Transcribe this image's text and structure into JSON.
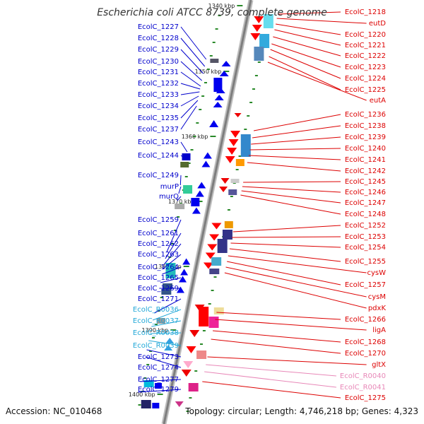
{
  "title": "Escherichia coli ATCC 8739, complete genome",
  "footer": {
    "accession": "Accession: NC_010468",
    "topology": "Topology: circular; Length: 4,746,218 bp; Genes: 4,323"
  },
  "colors": {
    "backbone": "#8a8a8a",
    "left_label": "#0000cc",
    "left_rna_label": "#22a8d8",
    "right_label": "#dd0000",
    "right_rna_label": "#e888b8",
    "tick": "#2a8a2a"
  },
  "ticks": [
    "1340 kbp",
    "1350 kbp",
    "1360 kbp",
    "1370 kbp",
    "1380 kbp",
    "1390 kbp",
    "1400 kbp"
  ],
  "left_labels": [
    {
      "text": "EcolC_1227",
      "kind": "gene"
    },
    {
      "text": "EcolC_1228",
      "kind": "gene"
    },
    {
      "text": "EcolC_1229",
      "kind": "gene"
    },
    {
      "text": "EcolC_1230",
      "kind": "gene"
    },
    {
      "text": "EcolC_1231",
      "kind": "gene"
    },
    {
      "text": "EcolC_1232",
      "kind": "gene"
    },
    {
      "text": "EcolC_1233",
      "kind": "gene"
    },
    {
      "text": "EcolC_1234",
      "kind": "gene"
    },
    {
      "text": "EcolC_1235",
      "kind": "gene"
    },
    {
      "text": "EcolC_1237",
      "kind": "gene"
    },
    {
      "text": "EcolC_1243",
      "kind": "gene"
    },
    {
      "text": "EcolC_1244",
      "kind": "gene"
    },
    {
      "text": "EcolC_1249",
      "kind": "gene"
    },
    {
      "text": "murP",
      "kind": "gene"
    },
    {
      "text": "murQ",
      "kind": "gene"
    },
    {
      "text": "EcolC_1259",
      "kind": "gene"
    },
    {
      "text": "EcolC_1261",
      "kind": "gene"
    },
    {
      "text": "EcolC_1262",
      "kind": "gene"
    },
    {
      "text": "EcolC_1263",
      "kind": "gene"
    },
    {
      "text": "EcolC_1264",
      "kind": "gene"
    },
    {
      "text": "EcolC_1265",
      "kind": "gene"
    },
    {
      "text": "EcolC_1269",
      "kind": "gene"
    },
    {
      "text": "EcolC_1271",
      "kind": "gene"
    },
    {
      "text": "EcolC_R0036",
      "kind": "rna"
    },
    {
      "text": "EcolC_R0037",
      "kind": "rna"
    },
    {
      "text": "EcolC_R0038",
      "kind": "rna"
    },
    {
      "text": "EcolC_R0039",
      "kind": "rna"
    },
    {
      "text": "EcolC_1273",
      "kind": "gene"
    },
    {
      "text": "EcolC_1274",
      "kind": "gene"
    },
    {
      "text": "EcolC_1277",
      "kind": "gene"
    },
    {
      "text": "EcolC_1279",
      "kind": "gene"
    }
  ],
  "right_labels": [
    {
      "text": "EcolC_1218",
      "kind": "gene"
    },
    {
      "text": "eutD",
      "kind": "gene"
    },
    {
      "text": "EcolC_1220",
      "kind": "gene"
    },
    {
      "text": "EcolC_1221",
      "kind": "gene"
    },
    {
      "text": "EcolC_1222",
      "kind": "gene"
    },
    {
      "text": "EcolC_1223",
      "kind": "gene"
    },
    {
      "text": "EcolC_1224",
      "kind": "gene"
    },
    {
      "text": "EcolC_1225",
      "kind": "gene"
    },
    {
      "text": "eutA",
      "kind": "gene"
    },
    {
      "text": "EcolC_1236",
      "kind": "gene"
    },
    {
      "text": "EcolC_1238",
      "kind": "gene"
    },
    {
      "text": "EcolC_1239",
      "kind": "gene"
    },
    {
      "text": "EcolC_1240",
      "kind": "gene"
    },
    {
      "text": "EcolC_1241",
      "kind": "gene"
    },
    {
      "text": "EcolC_1242",
      "kind": "gene"
    },
    {
      "text": "EcolC_1245",
      "kind": "gene"
    },
    {
      "text": "EcolC_1246",
      "kind": "gene"
    },
    {
      "text": "EcolC_1247",
      "kind": "gene"
    },
    {
      "text": "EcolC_1248",
      "kind": "gene"
    },
    {
      "text": "EcolC_1252",
      "kind": "gene"
    },
    {
      "text": "EcolC_1253",
      "kind": "gene"
    },
    {
      "text": "EcolC_1254",
      "kind": "gene"
    },
    {
      "text": "EcolC_1255",
      "kind": "gene"
    },
    {
      "text": "cysW",
      "kind": "gene"
    },
    {
      "text": "EcolC_1257",
      "kind": "gene"
    },
    {
      "text": "cysM",
      "kind": "gene"
    },
    {
      "text": "pdxK",
      "kind": "gene"
    },
    {
      "text": "EcolC_1266",
      "kind": "gene"
    },
    {
      "text": "ligA",
      "kind": "gene"
    },
    {
      "text": "EcolC_1268",
      "kind": "gene"
    },
    {
      "text": "EcolC_1270",
      "kind": "gene"
    },
    {
      "text": "gltX",
      "kind": "gene"
    },
    {
      "text": "EcolC_R0040",
      "kind": "rna"
    },
    {
      "text": "EcolC_R0041",
      "kind": "rna"
    },
    {
      "text": "EcolC_1275",
      "kind": "gene"
    }
  ]
}
